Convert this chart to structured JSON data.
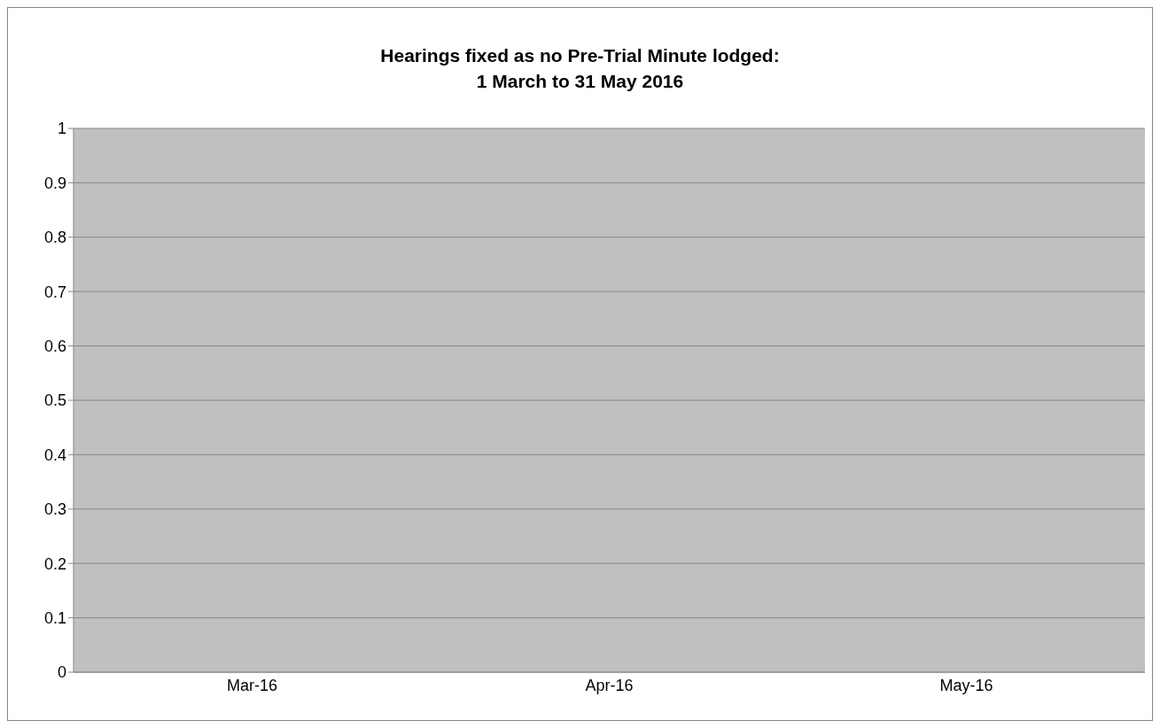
{
  "chart_data": {
    "type": "bar",
    "title": "Hearings fixed as no Pre-Trial Minute lodged: 1 March to 31 May 2016",
    "categories": [
      "Mar-16",
      "Apr-16",
      "May-16"
    ],
    "values": [
      0,
      0,
      0
    ],
    "ylim": [
      0,
      1
    ],
    "yticks": [
      0,
      0.1,
      0.2,
      0.3,
      0.4,
      0.5,
      0.6,
      0.7,
      0.8,
      0.9,
      1
    ],
    "grid": "y",
    "legend": false
  }
}
